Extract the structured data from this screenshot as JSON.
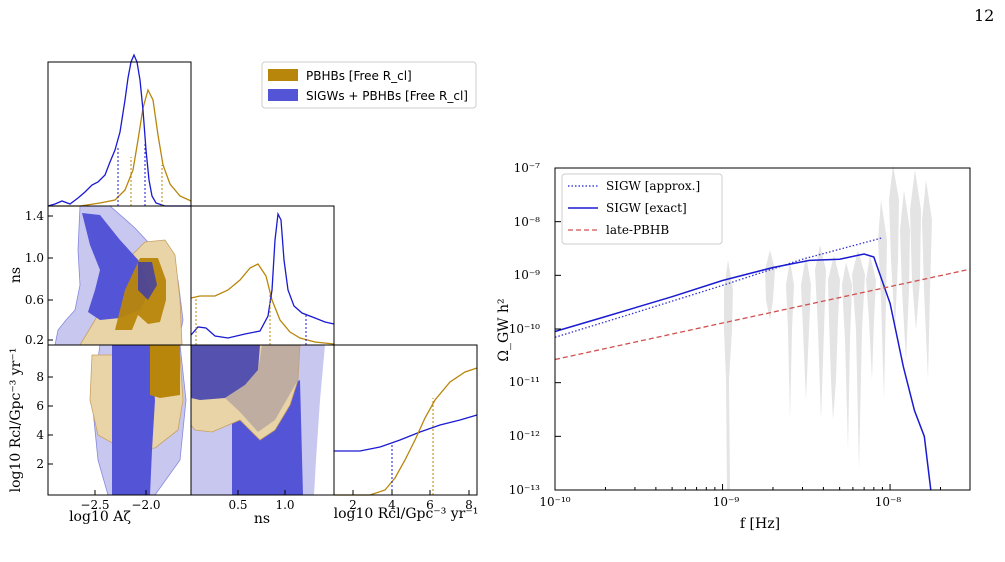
{
  "page": {
    "number": "12"
  },
  "colors": {
    "pbhb": "#b8860b",
    "pbhb_light": "#e9d4a8",
    "sigw": "#3333cc",
    "sigw_light": "#c7c7f0",
    "gray_band": "#e4e4e4",
    "late_pbhb": "#d05050"
  },
  "corner": {
    "legend": [
      "PBHBs [Free R_cl]",
      "SIGWs + PBHBs [Free R_cl]"
    ],
    "labels": {
      "x1": "log10 Aζ",
      "x2": "ns",
      "x3": "log10 Rcl/Gpc⁻³ yr⁻¹",
      "y_ns": "ns",
      "y_rcl": "log10 Rcl/Gpc⁻³ yr⁻¹"
    },
    "x_ticks_a": [
      "−2.5",
      "−2.0"
    ],
    "x_ticks_ns": [
      "0.5",
      "1.0"
    ],
    "x_ticks_rcl": [
      "2",
      "4",
      "6",
      "8"
    ],
    "y_ticks_ns": [
      "1.4",
      "1.0",
      "0.6",
      "0.2"
    ],
    "y_ticks_rcl": [
      "8",
      "6",
      "4",
      "2"
    ]
  },
  "chart_data": {
    "type": "line",
    "xlabel": "f [Hz]",
    "ylabel": "Ω_GW h²",
    "xscale": "log",
    "yscale": "log",
    "xlim": [
      1e-10,
      3e-08
    ],
    "ylim": [
      1e-13,
      1e-07
    ],
    "x_tick_labels": [
      "10⁻¹⁰",
      "10⁻⁹",
      "10⁻⁸"
    ],
    "y_tick_labels": [
      "10⁻⁷",
      "10⁻⁸",
      "10⁻⁹",
      "10⁻¹⁰",
      "10⁻¹¹",
      "10⁻¹²",
      "10⁻¹³"
    ],
    "legend_position": "top-left",
    "series": [
      {
        "name": "SIGW [approx.]",
        "style": "dotted",
        "x": [
          1e-10,
          3e-10,
          1e-09,
          3e-09,
          9e-09
        ],
        "y": [
          7e-11,
          2e-10,
          6.5e-10,
          2e-09,
          5e-09
        ]
      },
      {
        "name": "SIGW [exact]",
        "style": "solid",
        "x": [
          1e-10,
          2e-10,
          5e-10,
          1e-09,
          2e-09,
          3.3e-09,
          5e-09,
          7e-09,
          8e-09,
          1e-08,
          1.2e-08,
          1.4e-08,
          1.6e-08,
          1.75e-08
        ],
        "y": [
          9e-11,
          1.7e-10,
          4e-10,
          8e-10,
          1.4e-09,
          1.9e-09,
          2e-09,
          2.5e-09,
          2.2e-09,
          3e-10,
          2e-11,
          3e-12,
          1e-12,
          1e-13
        ]
      },
      {
        "name": "late-PBHB",
        "style": "dashed",
        "x": [
          1e-10,
          3e-08
        ],
        "y": [
          2.7e-11,
          1.3e-09
        ]
      }
    ]
  }
}
